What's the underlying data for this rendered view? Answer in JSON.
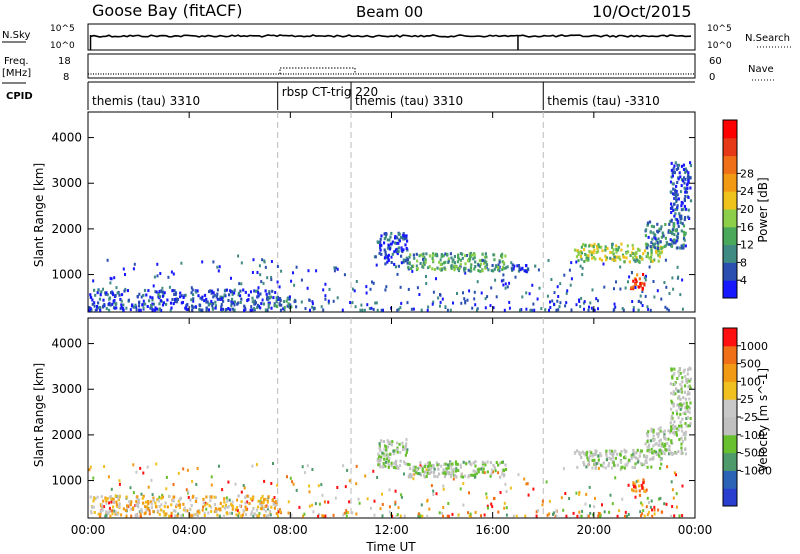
{
  "header": {
    "station": "Goose Bay (fitACF)",
    "beam": "Beam 00",
    "date": "10/Oct/2015"
  },
  "strips": {
    "nsky": {
      "label": "N.Sky",
      "ytick_top": "10^5",
      "ytick_bottom": "10^0"
    },
    "nsearch": {
      "label": "N.Search",
      "ytick_top": "10^5",
      "ytick_bottom": "10^0"
    },
    "freq": {
      "label_line1": "Freq.",
      "label_line2": "[MHz]",
      "ytick_top": "18",
      "ytick_bottom": "8"
    },
    "nave": {
      "label": "Nave",
      "ytick_top": "60",
      "ytick_bottom": "0"
    },
    "cpid": {
      "label": "CPID"
    }
  },
  "chart_data": [
    {
      "type": "timeline",
      "name": "cpid",
      "x_range_hours": [
        0,
        24
      ],
      "segments": [
        {
          "start": 0,
          "end": 7.5,
          "label": "themis (tau) 3310"
        },
        {
          "start": 7.5,
          "end": 10.4,
          "label": "rbsp CT-trig 220"
        },
        {
          "start": 10.4,
          "end": 18.0,
          "label": "themis (tau) 3310"
        },
        {
          "start": 18.0,
          "end": 24,
          "label": "themis (tau) -3310"
        }
      ]
    },
    {
      "type": "heatmap",
      "name": "power",
      "ylabel": "Slant Range [km]",
      "yticks": [
        1000,
        2000,
        3000,
        4000
      ],
      "ylim": [
        180,
        4560
      ],
      "xlim_hours": [
        0,
        24
      ],
      "colorbar": {
        "label": "Power [dB]",
        "ticks": [
          "4",
          "8",
          "12",
          "16",
          "20",
          "24",
          "28"
        ],
        "colors": [
          "#1818ff",
          "#2a4fb0",
          "#3f8a82",
          "#4aa85a",
          "#8ecf4a",
          "#f0c21c",
          "#f29a14",
          "#f07018",
          "#e63a16",
          "#ff0000"
        ]
      },
      "echo_regions": [
        {
          "t": [
            0.0,
            7.5
          ],
          "r": [
            250,
            700
          ],
          "level": 1
        },
        {
          "t": [
            7.0,
            8.2
          ],
          "r": [
            300,
            550
          ],
          "level": 2
        },
        {
          "t": [
            11.4,
            12.6
          ],
          "r": [
            1200,
            1950
          ],
          "level": 1
        },
        {
          "t": [
            12.6,
            16.5
          ],
          "r": [
            1100,
            1500
          ],
          "level": 3
        },
        {
          "t": [
            16.5,
            17.8
          ],
          "r": [
            1100,
            1250
          ],
          "level": 1
        },
        {
          "t": [
            19.2,
            22.7
          ],
          "r": [
            1300,
            1700
          ],
          "level": 4
        },
        {
          "t": [
            21.4,
            22.0
          ],
          "r": [
            700,
            1050
          ],
          "level": 8
        },
        {
          "t": [
            22.0,
            23.6
          ],
          "r": [
            1600,
            2200
          ],
          "level": 2
        },
        {
          "t": [
            23.0,
            23.8
          ],
          "r": [
            2200,
            3500
          ],
          "level": 1
        }
      ]
    },
    {
      "type": "heatmap",
      "name": "velocity",
      "ylabel": "Slant Range [km]",
      "xlabel": "Time UT",
      "xticks": [
        "00:00",
        "04:00",
        "08:00",
        "12:00",
        "16:00",
        "20:00",
        "00:00"
      ],
      "yticks": [
        1000,
        2000,
        3000,
        4000
      ],
      "ylim": [
        180,
        4560
      ],
      "xlim_hours": [
        0,
        24
      ],
      "colorbar": {
        "label": "Velocity [m s^-1]",
        "ticks": [
          "1000",
          "500",
          "100",
          "25",
          "-25",
          "-100",
          "-500",
          "-1000"
        ],
        "colors": [
          "#2a3fd0",
          "#2c63b6",
          "#4f9a6a",
          "#68c02e",
          "#c0c0c0",
          "#c8c8c8",
          "#f0c020",
          "#f29a14",
          "#f07018",
          "#ff1010"
        ]
      },
      "echo_regions": [
        {
          "t": [
            0.0,
            7.5
          ],
          "r": [
            250,
            700
          ],
          "level": 6
        },
        {
          "t": [
            11.4,
            12.6
          ],
          "r": [
            1300,
            1950
          ],
          "level": 4
        },
        {
          "t": [
            12.6,
            16.5
          ],
          "r": [
            1100,
            1450
          ],
          "level": 4
        },
        {
          "t": [
            19.2,
            22.7
          ],
          "r": [
            1300,
            1700
          ],
          "level": 4
        },
        {
          "t": [
            21.4,
            22.0
          ],
          "r": [
            700,
            1050
          ],
          "level": 8
        },
        {
          "t": [
            22.0,
            23.6
          ],
          "r": [
            1600,
            2200
          ],
          "level": 4
        },
        {
          "t": [
            23.0,
            23.8
          ],
          "r": [
            2200,
            3500
          ],
          "level": 4
        }
      ]
    }
  ]
}
